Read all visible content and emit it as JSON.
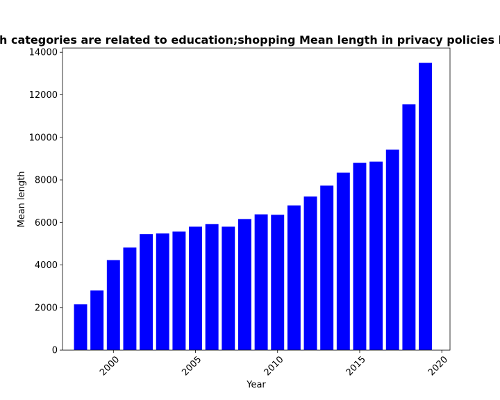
{
  "chart_data": {
    "type": "bar",
    "title": "Which categories are related to education;shopping Mean length in privacy policies by year",
    "xlabel": "Year",
    "ylabel": "Mean length",
    "x": [
      1998,
      1999,
      2000,
      2001,
      2002,
      2003,
      2004,
      2005,
      2006,
      2007,
      2008,
      2009,
      2010,
      2011,
      2012,
      2013,
      2014,
      2015,
      2016,
      2017,
      2018,
      2019
    ],
    "values": [
      2150,
      2800,
      4230,
      4820,
      5450,
      5480,
      5570,
      5800,
      5920,
      5800,
      6160,
      6380,
      6360,
      6800,
      7220,
      7730,
      8340,
      8800,
      8860,
      9420,
      11550,
      13500
    ],
    "xlim": [
      1996.9,
      2020.5
    ],
    "ylim": [
      0,
      14200
    ],
    "xticks": [
      2000,
      2005,
      2010,
      2015,
      2020
    ],
    "yticks": [
      0,
      2000,
      4000,
      6000,
      8000,
      10000,
      12000,
      14000
    ],
    "bar_color": "#0000ff",
    "grid": false
  }
}
